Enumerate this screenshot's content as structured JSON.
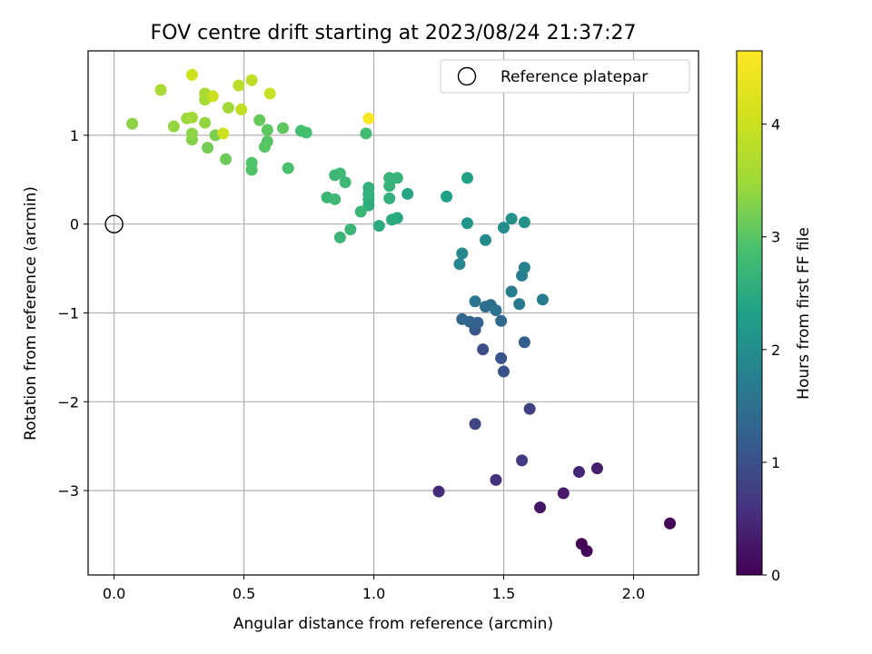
{
  "chart_data": {
    "type": "scatter",
    "title": "FOV centre drift starting at 2023/08/24 21:37:27",
    "xlabel": "Angular distance from reference (arcmin)",
    "ylabel": "Rotation from reference (arcmin)",
    "xlim": [
      -0.1,
      2.25
    ],
    "ylim": [
      -3.95,
      1.95
    ],
    "xticks": [
      0.0,
      0.5,
      1.0,
      1.5,
      2.0
    ],
    "xtick_labels": [
      "0.0",
      "0.5",
      "1.0",
      "1.5",
      "2.0"
    ],
    "yticks": [
      -3,
      -2,
      -1,
      0,
      1
    ],
    "ytick_labels": [
      "−3",
      "−2",
      "−1",
      "0",
      "1"
    ],
    "grid": true,
    "colormap": "viridis",
    "colorbar": {
      "label": "Hours from first FF file",
      "range": [
        0,
        4.65
      ],
      "ticks": [
        0,
        1,
        2,
        3,
        4
      ],
      "tick_labels": [
        "0",
        "1",
        "2",
        "3",
        "4"
      ]
    },
    "legend": {
      "position": "top-right",
      "entries": [
        {
          "label": "Reference platepar",
          "marker": "open-circle"
        }
      ]
    },
    "reference_point": {
      "x": 0.0,
      "y": 0.0
    },
    "points": [
      {
        "x": 2.14,
        "y": -3.37,
        "c": 0.05
      },
      {
        "x": 1.8,
        "y": -3.6,
        "c": 0.02
      },
      {
        "x": 1.82,
        "y": -3.68,
        "c": 0.1
      },
      {
        "x": 1.64,
        "y": -3.19,
        "c": 0.25
      },
      {
        "x": 1.73,
        "y": -3.03,
        "c": 0.3
      },
      {
        "x": 1.86,
        "y": -2.75,
        "c": 0.35
      },
      {
        "x": 1.79,
        "y": -2.79,
        "c": 0.45
      },
      {
        "x": 1.25,
        "y": -3.01,
        "c": 0.5
      },
      {
        "x": 1.47,
        "y": -2.88,
        "c": 0.6
      },
      {
        "x": 1.57,
        "y": -2.66,
        "c": 0.7
      },
      {
        "x": 1.6,
        "y": -2.08,
        "c": 0.75
      },
      {
        "x": 1.39,
        "y": -2.25,
        "c": 0.85
      },
      {
        "x": 1.42,
        "y": -1.41,
        "c": 0.95
      },
      {
        "x": 1.49,
        "y": -1.51,
        "c": 1.05
      },
      {
        "x": 1.5,
        "y": -1.66,
        "c": 1.0
      },
      {
        "x": 1.58,
        "y": -1.33,
        "c": 1.2
      },
      {
        "x": 1.39,
        "y": -1.19,
        "c": 1.1
      },
      {
        "x": 1.4,
        "y": -1.11,
        "c": 1.25
      },
      {
        "x": 1.37,
        "y": -1.1,
        "c": 1.3
      },
      {
        "x": 1.34,
        "y": -1.07,
        "c": 1.35
      },
      {
        "x": 1.49,
        "y": -1.09,
        "c": 1.4
      },
      {
        "x": 1.43,
        "y": -0.93,
        "c": 1.45
      },
      {
        "x": 1.45,
        "y": -0.91,
        "c": 1.5
      },
      {
        "x": 1.47,
        "y": -0.97,
        "c": 1.55
      },
      {
        "x": 1.39,
        "y": -0.87,
        "c": 1.6
      },
      {
        "x": 1.56,
        "y": -0.9,
        "c": 1.65
      },
      {
        "x": 1.53,
        "y": -0.76,
        "c": 1.7
      },
      {
        "x": 1.65,
        "y": -0.85,
        "c": 1.7
      },
      {
        "x": 1.57,
        "y": -0.58,
        "c": 1.75
      },
      {
        "x": 1.58,
        "y": -0.49,
        "c": 1.8
      },
      {
        "x": 1.33,
        "y": -0.45,
        "c": 1.85
      },
      {
        "x": 1.34,
        "y": -0.33,
        "c": 1.9
      },
      {
        "x": 1.43,
        "y": -0.18,
        "c": 1.95
      },
      {
        "x": 1.5,
        "y": -0.04,
        "c": 2.0
      },
      {
        "x": 1.53,
        "y": 0.06,
        "c": 2.05
      },
      {
        "x": 1.58,
        "y": 0.02,
        "c": 2.1
      },
      {
        "x": 1.36,
        "y": 0.01,
        "c": 2.15
      },
      {
        "x": 1.28,
        "y": 0.31,
        "c": 2.3
      },
      {
        "x": 1.36,
        "y": 0.52,
        "c": 2.35
      },
      {
        "x": 1.13,
        "y": 0.34,
        "c": 2.4
      },
      {
        "x": 1.09,
        "y": 0.07,
        "c": 2.45
      },
      {
        "x": 1.07,
        "y": 0.05,
        "c": 2.5
      },
      {
        "x": 1.02,
        "y": -0.02,
        "c": 2.5
      },
      {
        "x": 0.98,
        "y": 0.21,
        "c": 2.55
      },
      {
        "x": 0.98,
        "y": 0.28,
        "c": 2.55
      },
      {
        "x": 0.98,
        "y": 0.34,
        "c": 2.6
      },
      {
        "x": 0.98,
        "y": 0.41,
        "c": 2.6
      },
      {
        "x": 1.06,
        "y": 0.29,
        "c": 2.6
      },
      {
        "x": 1.06,
        "y": 0.43,
        "c": 2.65
      },
      {
        "x": 1.06,
        "y": 0.52,
        "c": 2.65
      },
      {
        "x": 1.09,
        "y": 0.52,
        "c": 2.65
      },
      {
        "x": 0.95,
        "y": 0.14,
        "c": 2.7
      },
      {
        "x": 0.91,
        "y": -0.06,
        "c": 2.7
      },
      {
        "x": 0.87,
        "y": -0.15,
        "c": 2.7
      },
      {
        "x": 0.82,
        "y": 0.3,
        "c": 2.7
      },
      {
        "x": 0.85,
        "y": 0.28,
        "c": 2.75
      },
      {
        "x": 0.89,
        "y": 0.47,
        "c": 2.75
      },
      {
        "x": 0.85,
        "y": 0.55,
        "c": 2.75
      },
      {
        "x": 0.87,
        "y": 0.57,
        "c": 2.75
      },
      {
        "x": 0.97,
        "y": 1.02,
        "c": 2.8
      },
      {
        "x": 0.74,
        "y": 1.03,
        "c": 2.85
      },
      {
        "x": 0.72,
        "y": 1.05,
        "c": 2.85
      },
      {
        "x": 0.67,
        "y": 0.63,
        "c": 2.9
      },
      {
        "x": 0.53,
        "y": 0.61,
        "c": 2.95
      },
      {
        "x": 0.53,
        "y": 0.69,
        "c": 2.95
      },
      {
        "x": 0.58,
        "y": 0.87,
        "c": 3.0
      },
      {
        "x": 0.59,
        "y": 0.93,
        "c": 3.0
      },
      {
        "x": 0.59,
        "y": 1.06,
        "c": 3.05
      },
      {
        "x": 0.65,
        "y": 1.08,
        "c": 3.05
      },
      {
        "x": 0.56,
        "y": 1.17,
        "c": 3.1
      },
      {
        "x": 0.43,
        "y": 0.73,
        "c": 3.15
      },
      {
        "x": 0.36,
        "y": 0.86,
        "c": 3.2
      },
      {
        "x": 0.39,
        "y": 1.0,
        "c": 3.25
      },
      {
        "x": 0.3,
        "y": 0.95,
        "c": 3.3
      },
      {
        "x": 0.3,
        "y": 1.02,
        "c": 3.35
      },
      {
        "x": 0.23,
        "y": 1.1,
        "c": 3.4
      },
      {
        "x": 0.07,
        "y": 1.13,
        "c": 3.35
      },
      {
        "x": 0.35,
        "y": 1.14,
        "c": 3.4
      },
      {
        "x": 0.28,
        "y": 1.19,
        "c": 3.45
      },
      {
        "x": 0.3,
        "y": 1.2,
        "c": 3.5
      },
      {
        "x": 0.44,
        "y": 1.31,
        "c": 3.5
      },
      {
        "x": 0.35,
        "y": 1.4,
        "c": 3.55
      },
      {
        "x": 0.35,
        "y": 1.47,
        "c": 3.6
      },
      {
        "x": 0.18,
        "y": 1.51,
        "c": 3.6
      },
      {
        "x": 0.48,
        "y": 1.56,
        "c": 3.8
      },
      {
        "x": 0.53,
        "y": 1.62,
        "c": 3.85
      },
      {
        "x": 0.49,
        "y": 1.29,
        "c": 3.9
      },
      {
        "x": 0.6,
        "y": 1.47,
        "c": 3.95
      },
      {
        "x": 0.38,
        "y": 1.44,
        "c": 4.0
      },
      {
        "x": 0.42,
        "y": 1.02,
        "c": 4.05
      },
      {
        "x": 0.3,
        "y": 1.68,
        "c": 4.05
      },
      {
        "x": 0.98,
        "y": 1.19,
        "c": 4.6
      }
    ]
  }
}
